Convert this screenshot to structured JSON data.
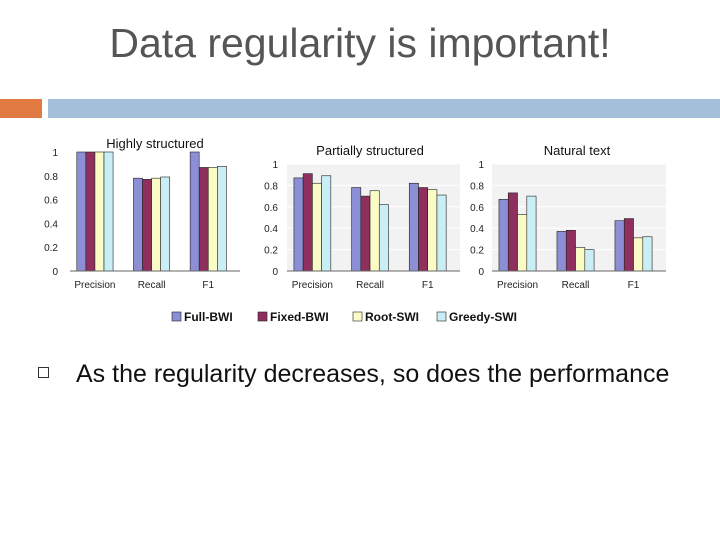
{
  "slide": {
    "title": "Data regularity is important!",
    "bullet": "As the regularity decreases, so does the performance"
  },
  "colors": {
    "accent_orange": "#e27b43",
    "accent_blue": "#a3bfd9",
    "series": [
      "#8c8fd6",
      "#8f2f5e",
      "#fbfbc6",
      "#c9eef5"
    ]
  },
  "chart_data": [
    {
      "type": "bar",
      "title": "Highly structured",
      "categories": [
        "Precision",
        "Recall",
        "F1"
      ],
      "yticks": [
        "0",
        "0.2",
        "0.4",
        "0.6",
        "0.8",
        "1"
      ],
      "ylim": [
        0,
        1
      ],
      "series": [
        {
          "name": "Full-BWI",
          "values": [
            1.0,
            0.78,
            1.0
          ]
        },
        {
          "name": "Fixed-BWI",
          "values": [
            1.0,
            0.77,
            0.87
          ]
        },
        {
          "name": "Root-SWI",
          "values": [
            1.0,
            0.78,
            0.87
          ]
        },
        {
          "name": "Greedy-SWI",
          "values": [
            1.0,
            0.79,
            0.88
          ]
        }
      ]
    },
    {
      "type": "bar",
      "title": "Partially structured",
      "categories": [
        "Precision",
        "Recall",
        "F1"
      ],
      "yticks": [
        "0",
        "0.2",
        "0.4",
        "0.6",
        "0.8",
        "1"
      ],
      "ylim": [
        0,
        1
      ],
      "series": [
        {
          "name": "Full-BWI",
          "values": [
            0.87,
            0.78,
            0.82
          ]
        },
        {
          "name": "Fixed-BWI",
          "values": [
            0.91,
            0.7,
            0.78
          ]
        },
        {
          "name": "Root-SWI",
          "values": [
            0.82,
            0.75,
            0.76
          ]
        },
        {
          "name": "Greedy-SWI",
          "values": [
            0.89,
            0.62,
            0.71
          ]
        }
      ]
    },
    {
      "type": "bar",
      "title": "Natural text",
      "categories": [
        "Precision",
        "Recall",
        "F1"
      ],
      "yticks": [
        "0",
        "0.2",
        "0.4",
        "0.6",
        "0.8",
        "1"
      ],
      "ylim": [
        0,
        1
      ],
      "series": [
        {
          "name": "Full-BWI",
          "values": [
            0.67,
            0.37,
            0.47
          ]
        },
        {
          "name": "Fixed-BWI",
          "values": [
            0.73,
            0.38,
            0.49
          ]
        },
        {
          "name": "Root-SWI",
          "values": [
            0.53,
            0.22,
            0.31
          ]
        },
        {
          "name": "Greedy-SWI",
          "values": [
            0.7,
            0.2,
            0.32
          ]
        }
      ]
    }
  ],
  "legend": [
    "Full-BWI",
    "Fixed-BWI",
    "Root-SWI",
    "Greedy-SWI"
  ]
}
